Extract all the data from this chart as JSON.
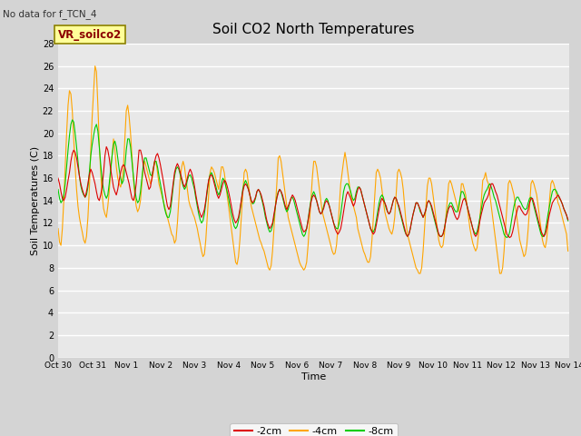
{
  "title": "Soil CO2 North Temperatures",
  "subtitle": "No data for f_TCN_4",
  "xlabel": "Time",
  "ylabel": "Soil Temperatures (C)",
  "ylim": [
    0,
    28
  ],
  "yticks": [
    0,
    2,
    4,
    6,
    8,
    10,
    12,
    14,
    16,
    18,
    20,
    22,
    24,
    26,
    28
  ],
  "fig_bg_color": "#d4d4d4",
  "plot_bg_color": "#e8e8e8",
  "legend_box_color": "#ffff99",
  "legend_box_edge": "#8B8000",
  "legend_label": "VR_soilco2",
  "line_2cm_color": "#dd0000",
  "line_4cm_color": "#FFA500",
  "line_8cm_color": "#00cc00",
  "xtick_labels": [
    "Oct 30",
    "Oct 31",
    "Nov 1",
    "Nov 2",
    "Nov 3",
    "Nov 4",
    "Nov 5",
    "Nov 6",
    "Nov 7",
    "Nov 8",
    "Nov 9",
    "Nov 10",
    "Nov 11",
    "Nov 12",
    "Nov 13",
    "Nov 14"
  ],
  "data_2cm": [
    16.0,
    15.5,
    14.8,
    14.2,
    14.0,
    14.3,
    15.0,
    15.8,
    16.5,
    17.5,
    18.2,
    18.5,
    18.3,
    17.8,
    17.0,
    16.2,
    15.5,
    15.0,
    14.6,
    14.3,
    14.8,
    15.5,
    16.3,
    16.8,
    16.5,
    16.0,
    15.5,
    14.8,
    14.2,
    14.0,
    14.5,
    15.2,
    16.5,
    18.0,
    18.8,
    18.5,
    17.8,
    16.8,
    16.0,
    15.2,
    14.8,
    14.5,
    15.0,
    15.8,
    16.5,
    17.0,
    17.2,
    17.0,
    16.5,
    16.0,
    15.5,
    14.8,
    14.2,
    14.0,
    14.5,
    15.5,
    17.0,
    18.5,
    18.5,
    18.0,
    17.2,
    16.5,
    16.0,
    15.5,
    15.0,
    15.2,
    16.0,
    16.8,
    17.5,
    18.0,
    18.2,
    17.8,
    17.2,
    16.5,
    15.8,
    15.0,
    14.2,
    13.5,
    13.2,
    13.5,
    14.5,
    15.5,
    16.5,
    17.0,
    17.3,
    17.0,
    16.5,
    16.0,
    15.5,
    15.2,
    15.5,
    16.0,
    16.5,
    16.8,
    16.5,
    16.0,
    15.3,
    14.5,
    13.8,
    13.2,
    12.8,
    12.5,
    12.8,
    13.2,
    14.0,
    15.0,
    15.8,
    16.2,
    16.3,
    16.0,
    15.5,
    15.0,
    14.5,
    14.2,
    14.5,
    15.0,
    15.5,
    15.8,
    15.7,
    15.3,
    14.8,
    14.2,
    13.5,
    12.8,
    12.3,
    12.0,
    12.2,
    12.5,
    13.2,
    14.0,
    14.8,
    15.3,
    15.5,
    15.3,
    15.0,
    14.5,
    14.0,
    13.8,
    14.0,
    14.3,
    14.8,
    15.0,
    14.8,
    14.5,
    14.0,
    13.5,
    12.8,
    12.2,
    11.8,
    11.5,
    11.7,
    12.0,
    12.8,
    13.5,
    14.2,
    14.7,
    15.0,
    14.8,
    14.5,
    14.0,
    13.5,
    13.2,
    13.5,
    13.8,
    14.2,
    14.5,
    14.3,
    14.0,
    13.5,
    13.0,
    12.5,
    12.0,
    11.5,
    11.2,
    11.3,
    11.5,
    12.2,
    13.0,
    13.8,
    14.3,
    14.5,
    14.3,
    14.0,
    13.5,
    13.0,
    12.8,
    13.0,
    13.3,
    13.8,
    14.0,
    13.8,
    13.5,
    13.0,
    12.5,
    12.0,
    11.5,
    11.2,
    11.0,
    11.2,
    11.5,
    12.2,
    13.0,
    13.8,
    14.5,
    14.8,
    14.5,
    14.2,
    13.8,
    13.5,
    13.8,
    14.5,
    15.0,
    15.2,
    15.0,
    14.5,
    14.0,
    13.5,
    13.0,
    12.5,
    12.0,
    11.5,
    11.2,
    11.0,
    11.2,
    11.8,
    12.5,
    13.2,
    13.8,
    14.2,
    14.0,
    13.8,
    13.5,
    13.0,
    12.8,
    13.0,
    13.5,
    14.0,
    14.3,
    14.2,
    13.8,
    13.5,
    13.0,
    12.5,
    12.0,
    11.5,
    11.0,
    10.8,
    11.0,
    11.5,
    12.2,
    12.8,
    13.3,
    13.8,
    13.8,
    13.5,
    13.2,
    12.8,
    12.5,
    12.8,
    13.2,
    13.8,
    14.0,
    13.8,
    13.5,
    13.0,
    12.5,
    12.0,
    11.5,
    11.0,
    10.8,
    10.8,
    11.0,
    11.5,
    12.2,
    12.8,
    13.3,
    13.5,
    13.5,
    13.2,
    12.8,
    12.5,
    12.3,
    12.5,
    13.0,
    13.5,
    14.0,
    14.2,
    14.0,
    13.5,
    13.0,
    12.5,
    12.0,
    11.5,
    11.0,
    10.8,
    11.0,
    11.5,
    12.2,
    12.8,
    13.3,
    13.8,
    14.0,
    14.2,
    14.5,
    15.0,
    15.5,
    15.5,
    15.2,
    14.8,
    14.5,
    14.0,
    13.5,
    13.0,
    12.5,
    12.0,
    11.5,
    11.0,
    10.8,
    10.7,
    10.8,
    11.2,
    11.8,
    12.5,
    13.0,
    13.5,
    13.5,
    13.2,
    13.0,
    12.8,
    12.7,
    12.8,
    13.2,
    13.8,
    14.2,
    14.2,
    13.8,
    13.3,
    12.8,
    12.3,
    11.8,
    11.3,
    11.0,
    10.8,
    11.0,
    11.5,
    12.2,
    12.8,
    13.3,
    13.8,
    14.0,
    14.2,
    14.3,
    14.5,
    14.3,
    14.0,
    13.7,
    13.3,
    13.0,
    12.7,
    12.3
  ],
  "data_4cm": [
    11.5,
    10.3,
    10.0,
    11.5,
    14.0,
    17.0,
    20.0,
    22.5,
    23.8,
    23.5,
    22.0,
    19.5,
    17.0,
    15.0,
    13.5,
    12.5,
    11.8,
    11.2,
    10.5,
    10.2,
    10.8,
    12.5,
    15.0,
    18.5,
    21.5,
    23.8,
    26.0,
    25.5,
    22.5,
    19.0,
    16.5,
    14.5,
    13.3,
    12.8,
    12.5,
    13.5,
    14.8,
    16.5,
    18.0,
    19.5,
    18.5,
    17.0,
    16.0,
    15.5,
    15.2,
    15.8,
    17.0,
    19.5,
    22.0,
    22.5,
    21.5,
    20.0,
    18.0,
    16.0,
    14.5,
    13.5,
    13.0,
    13.3,
    14.0,
    15.5,
    17.0,
    17.5,
    17.0,
    16.5,
    16.0,
    15.5,
    15.8,
    16.5,
    17.5,
    17.5,
    16.5,
    15.5,
    15.0,
    14.5,
    14.0,
    13.5,
    13.0,
    12.5,
    12.0,
    11.5,
    11.0,
    10.8,
    10.2,
    10.5,
    12.0,
    14.0,
    16.0,
    17.0,
    17.5,
    17.0,
    16.0,
    15.0,
    14.0,
    13.5,
    13.2,
    12.8,
    12.5,
    12.0,
    11.5,
    10.8,
    10.2,
    9.5,
    9.0,
    9.2,
    10.5,
    12.5,
    14.5,
    16.5,
    17.0,
    16.8,
    16.5,
    16.0,
    15.5,
    15.0,
    16.0,
    17.0,
    17.0,
    16.5,
    15.5,
    14.5,
    13.5,
    12.5,
    11.5,
    10.5,
    9.5,
    8.5,
    8.3,
    9.0,
    10.5,
    12.5,
    14.5,
    16.5,
    16.8,
    16.5,
    15.5,
    14.5,
    13.5,
    13.0,
    12.5,
    12.0,
    11.5,
    11.0,
    10.5,
    10.2,
    9.8,
    9.5,
    9.0,
    8.5,
    8.0,
    7.8,
    8.2,
    9.5,
    11.5,
    13.5,
    15.5,
    17.8,
    18.0,
    17.5,
    16.5,
    15.5,
    14.5,
    13.5,
    12.5,
    12.0,
    11.5,
    11.0,
    10.5,
    10.0,
    9.5,
    9.0,
    8.5,
    8.2,
    8.0,
    7.8,
    8.0,
    8.5,
    10.0,
    12.0,
    14.0,
    16.0,
    17.5,
    17.5,
    17.0,
    16.0,
    15.0,
    14.0,
    13.0,
    12.5,
    12.0,
    11.5,
    11.0,
    10.5,
    10.0,
    9.5,
    9.2,
    9.3,
    10.0,
    11.5,
    13.5,
    15.5,
    16.5,
    17.5,
    18.3,
    17.5,
    16.5,
    15.5,
    14.5,
    14.0,
    13.5,
    13.0,
    12.5,
    11.5,
    11.0,
    10.5,
    10.0,
    9.5,
    9.2,
    8.8,
    8.5,
    8.5,
    9.0,
    10.5,
    12.5,
    14.5,
    16.5,
    16.8,
    16.5,
    16.0,
    15.0,
    14.0,
    13.0,
    12.5,
    12.0,
    11.5,
    11.2,
    11.0,
    11.5,
    12.5,
    14.5,
    16.5,
    16.8,
    16.5,
    16.0,
    15.0,
    13.5,
    12.0,
    11.0,
    10.5,
    10.0,
    9.5,
    9.0,
    8.5,
    8.0,
    7.8,
    7.5,
    7.5,
    8.0,
    9.5,
    11.5,
    13.5,
    15.3,
    16.0,
    16.0,
    15.5,
    14.5,
    13.5,
    12.5,
    11.5,
    10.5,
    10.0,
    9.8,
    10.0,
    11.0,
    12.5,
    14.0,
    15.5,
    15.8,
    15.5,
    15.0,
    14.5,
    14.0,
    13.5,
    13.0,
    14.0,
    15.5,
    15.5,
    15.0,
    14.5,
    13.5,
    12.5,
    11.5,
    10.8,
    10.2,
    9.8,
    9.5,
    9.8,
    11.0,
    12.5,
    14.0,
    15.8,
    16.0,
    16.5,
    15.8,
    15.5,
    14.5,
    13.5,
    12.5,
    11.5,
    10.5,
    9.5,
    8.5,
    7.5,
    7.5,
    8.0,
    9.5,
    11.5,
    13.5,
    15.5,
    15.8,
    15.5,
    15.0,
    14.5,
    13.5,
    12.5,
    11.5,
    10.5,
    10.0,
    9.5,
    9.0,
    9.2,
    10.0,
    11.5,
    13.5,
    15.5,
    15.8,
    15.5,
    15.0,
    14.5,
    13.5,
    12.5,
    11.5,
    10.5,
    10.0,
    9.8,
    10.5,
    12.0,
    14.0,
    15.5,
    15.8,
    15.5,
    15.0,
    14.5,
    13.8,
    13.5,
    13.0,
    12.5,
    12.0,
    11.5,
    11.0,
    9.5
  ],
  "data_8cm": [
    15.0,
    14.2,
    13.8,
    14.0,
    14.5,
    15.5,
    17.0,
    18.5,
    19.8,
    20.8,
    21.2,
    21.0,
    20.0,
    18.8,
    17.5,
    16.2,
    15.3,
    14.8,
    14.5,
    14.3,
    14.5,
    15.2,
    16.5,
    18.0,
    19.0,
    19.8,
    20.5,
    20.8,
    20.2,
    18.8,
    17.2,
    15.8,
    15.0,
    14.5,
    14.2,
    14.5,
    15.5,
    16.8,
    18.0,
    19.0,
    19.3,
    18.8,
    17.8,
    16.8,
    16.0,
    15.5,
    15.8,
    17.0,
    18.5,
    19.5,
    19.5,
    18.8,
    17.5,
    16.2,
    15.0,
    14.2,
    13.8,
    14.0,
    14.8,
    16.0,
    17.2,
    17.8,
    17.8,
    17.3,
    16.8,
    16.3,
    16.2,
    16.8,
    17.5,
    17.5,
    17.0,
    16.2,
    15.5,
    14.8,
    14.0,
    13.3,
    12.8,
    12.5,
    12.5,
    13.0,
    14.0,
    15.2,
    16.2,
    16.8,
    17.0,
    16.8,
    16.3,
    15.8,
    15.3,
    15.0,
    15.2,
    15.8,
    16.2,
    16.3,
    16.0,
    15.5,
    15.0,
    14.2,
    13.5,
    12.8,
    12.3,
    12.0,
    12.2,
    12.8,
    13.8,
    14.8,
    15.8,
    16.3,
    16.5,
    16.2,
    15.8,
    15.3,
    14.8,
    14.5,
    14.8,
    15.5,
    16.0,
    15.8,
    15.3,
    14.8,
    14.2,
    13.5,
    12.8,
    12.2,
    11.7,
    11.5,
    11.7,
    12.2,
    13.0,
    14.0,
    15.0,
    15.5,
    15.8,
    15.5,
    15.0,
    14.5,
    14.0,
    13.7,
    13.8,
    14.2,
    14.8,
    15.0,
    14.8,
    14.3,
    13.8,
    13.2,
    12.5,
    12.0,
    11.5,
    11.2,
    11.3,
    11.8,
    12.5,
    13.5,
    14.3,
    14.8,
    15.0,
    14.8,
    14.3,
    13.8,
    13.3,
    13.0,
    13.2,
    13.8,
    14.2,
    14.3,
    14.0,
    13.5,
    13.0,
    12.5,
    12.0,
    11.5,
    11.0,
    10.8,
    11.0,
    11.5,
    12.3,
    13.2,
    14.0,
    14.5,
    14.8,
    14.5,
    14.0,
    13.5,
    13.0,
    12.8,
    13.0,
    13.5,
    14.0,
    14.2,
    14.0,
    13.5,
    13.0,
    12.5,
    12.0,
    11.7,
    11.5,
    11.5,
    12.0,
    12.8,
    13.8,
    14.8,
    15.3,
    15.5,
    15.5,
    15.2,
    14.8,
    14.3,
    14.0,
    14.2,
    14.8,
    15.2,
    15.2,
    15.0,
    14.5,
    14.0,
    13.5,
    13.0,
    12.5,
    12.0,
    11.5,
    11.3,
    11.2,
    11.5,
    12.2,
    13.0,
    13.8,
    14.3,
    14.5,
    14.3,
    13.8,
    13.3,
    13.0,
    12.8,
    13.0,
    13.5,
    14.0,
    14.3,
    14.2,
    13.8,
    13.3,
    12.8,
    12.3,
    11.8,
    11.3,
    11.0,
    10.8,
    11.0,
    11.5,
    12.2,
    12.8,
    13.3,
    13.8,
    13.8,
    13.5,
    13.0,
    12.8,
    12.5,
    12.8,
    13.2,
    13.8,
    14.0,
    13.8,
    13.3,
    12.8,
    12.3,
    11.8,
    11.3,
    11.0,
    10.8,
    10.8,
    11.0,
    11.5,
    12.3,
    13.0,
    13.5,
    13.8,
    13.8,
    13.5,
    13.2,
    13.0,
    13.0,
    13.5,
    14.2,
    14.8,
    14.8,
    14.5,
    14.0,
    13.5,
    13.0,
    12.5,
    12.0,
    11.5,
    11.2,
    11.0,
    11.2,
    11.8,
    12.5,
    13.2,
    14.0,
    14.5,
    14.8,
    15.0,
    15.3,
    15.5,
    15.2,
    14.8,
    14.3,
    14.0,
    13.5,
    13.0,
    12.5,
    12.0,
    11.5,
    11.0,
    10.8,
    10.7,
    10.8,
    11.2,
    12.0,
    12.8,
    13.5,
    14.0,
    14.3,
    14.3,
    14.0,
    13.8,
    13.5,
    13.3,
    13.2,
    13.3,
    13.8,
    14.2,
    14.3,
    14.0,
    13.5,
    13.0,
    12.5,
    12.0,
    11.5,
    11.0,
    10.8,
    10.8,
    11.2,
    12.0,
    12.8,
    13.5,
    14.2,
    14.8,
    15.0,
    15.0,
    14.8,
    14.5,
    14.2,
    14.0,
    13.7,
    13.3,
    13.0,
    12.7,
    12.2
  ]
}
